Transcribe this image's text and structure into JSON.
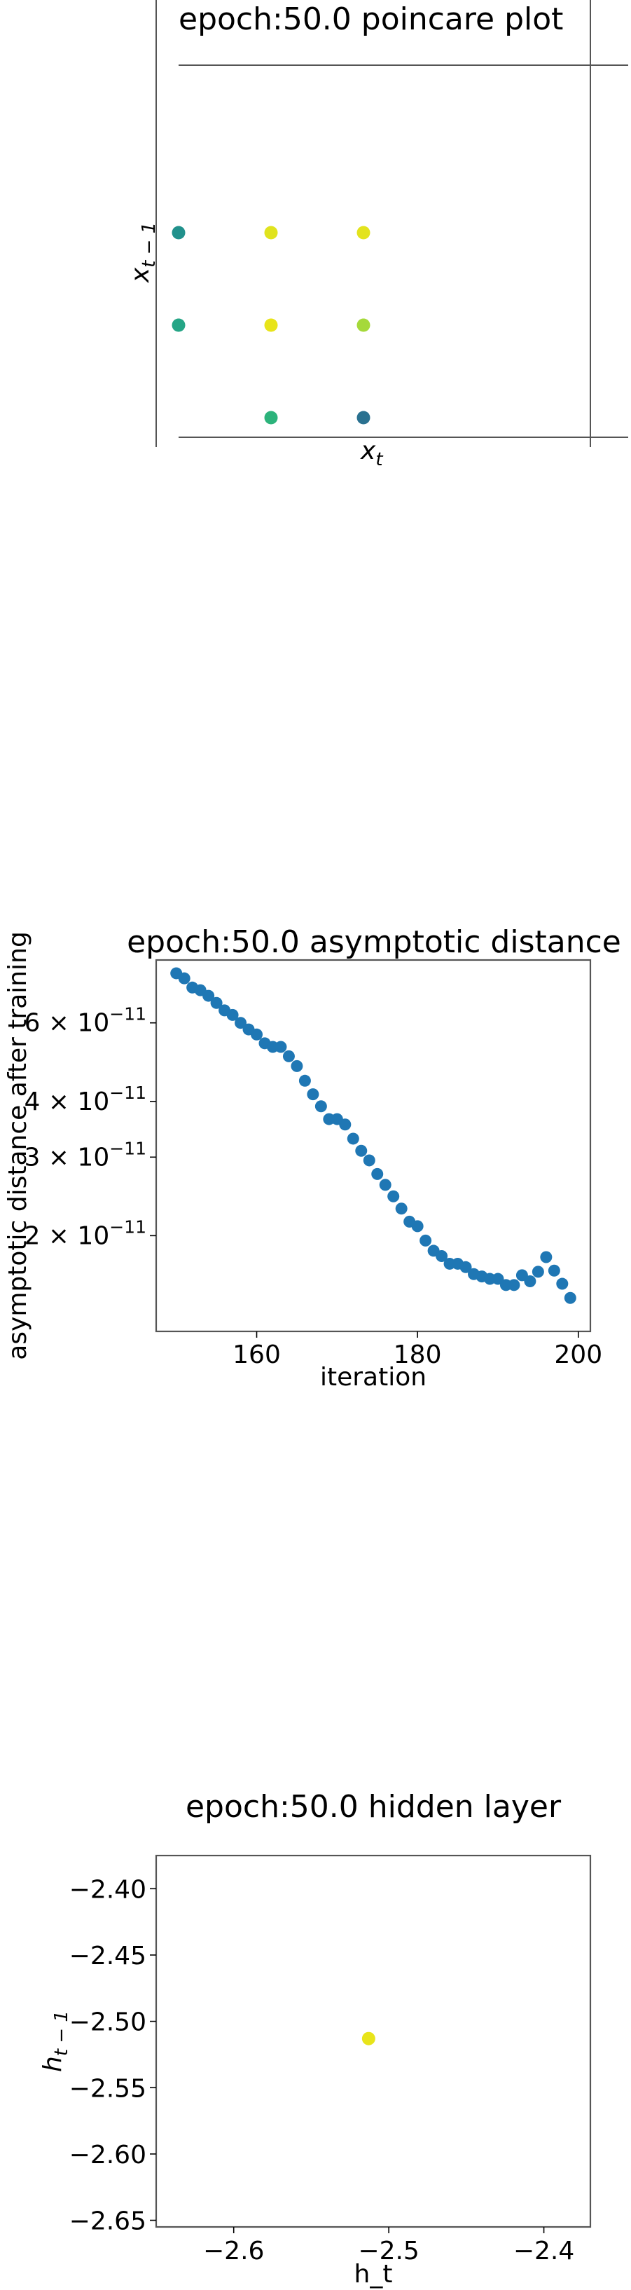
{
  "chart_data": [
    {
      "type": "scatter",
      "title": "epoch:50.0 poincare plot",
      "xlabel": "x_t",
      "ylabel": "x_{t-1}",
      "axes": "hidden-ticks",
      "points": [
        {
          "x": 1,
          "y": 3,
          "color": "#21918c"
        },
        {
          "x": 2,
          "y": 3,
          "color": "#e0e31e"
        },
        {
          "x": 3,
          "y": 3,
          "color": "#e3e31d"
        },
        {
          "x": 1,
          "y": 2,
          "color": "#25a586"
        },
        {
          "x": 2,
          "y": 2,
          "color": "#e8e41a"
        },
        {
          "x": 3,
          "y": 2,
          "color": "#a5d93a"
        },
        {
          "x": 2,
          "y": 1,
          "color": "#2cb37b"
        },
        {
          "x": 3,
          "y": 1,
          "color": "#2a7190"
        }
      ]
    },
    {
      "type": "scatter",
      "title": "epoch:50.0 asymptotic distance",
      "xlabel": "iteration",
      "ylabel": "asymptotic distance after training",
      "yscale": "log",
      "xlim": [
        147.5,
        201.5
      ],
      "ylim": [
        1.22e-11,
        8.3e-11
      ],
      "xticks": [
        160,
        180,
        200
      ],
      "xtick_labels": [
        "160",
        "180",
        "200"
      ],
      "yticks": [
        2e-11,
        3e-11,
        4e-11,
        6e-11
      ],
      "ytick_labels": [
        {
          "mantissa": "2",
          "exp": "−11"
        },
        {
          "mantissa": "3",
          "exp": "−11"
        },
        {
          "mantissa": "4",
          "exp": "−11"
        },
        {
          "mantissa": "6",
          "exp": "−11"
        }
      ],
      "color": "#1f77b4",
      "x": [
        150,
        151,
        152,
        153,
        154,
        155,
        156,
        157,
        158,
        159,
        160,
        161,
        162,
        163,
        164,
        165,
        166,
        167,
        168,
        169,
        170,
        171,
        172,
        173,
        174,
        175,
        176,
        177,
        178,
        179,
        180,
        181,
        182,
        183,
        184,
        185,
        186,
        187,
        188,
        189,
        190,
        191,
        192,
        193,
        194,
        195,
        196,
        197,
        198,
        199
      ],
      "y": [
        7.75e-11,
        7.55e-11,
        7.2e-11,
        7.1e-11,
        6.9e-11,
        6.65e-11,
        6.4e-11,
        6.25e-11,
        6e-11,
        5.8e-11,
        5.65e-11,
        5.4e-11,
        5.3e-11,
        5.3e-11,
        5.05e-11,
        4.8e-11,
        4.45e-11,
        4.15e-11,
        3.9e-11,
        3.65e-11,
        3.65e-11,
        3.55e-11,
        3.3e-11,
        3.1e-11,
        2.95e-11,
        2.75e-11,
        2.6e-11,
        2.45e-11,
        2.3e-11,
        2.15e-11,
        2.1e-11,
        1.95e-11,
        1.85e-11,
        1.8e-11,
        1.73e-11,
        1.73e-11,
        1.7e-11,
        1.64e-11,
        1.62e-11,
        1.6e-11,
        1.6e-11,
        1.55e-11,
        1.55e-11,
        1.63e-11,
        1.58e-11,
        1.66e-11,
        1.79e-11,
        1.67e-11,
        1.56e-11,
        1.45e-11
      ]
    },
    {
      "type": "scatter",
      "title": "epoch:50.0 hidden layer",
      "xlabel": "h_t",
      "ylabel": "h_{t-1}",
      "xlim": [
        -2.65,
        -2.37
      ],
      "ylim": [
        -2.655,
        -2.375
      ],
      "xticks": [
        -2.6,
        -2.5,
        -2.4
      ],
      "xtick_labels": [
        "−2.6",
        "−2.5",
        "−2.4"
      ],
      "yticks": [
        -2.4,
        -2.45,
        -2.5,
        -2.55,
        -2.6,
        -2.65
      ],
      "ytick_labels": [
        "−2.40",
        "−2.45",
        "−2.50",
        "−2.55",
        "−2.60",
        "−2.65"
      ],
      "points": [
        {
          "x": -2.513,
          "y": -2.513,
          "color": "#e8e41a"
        }
      ]
    }
  ]
}
